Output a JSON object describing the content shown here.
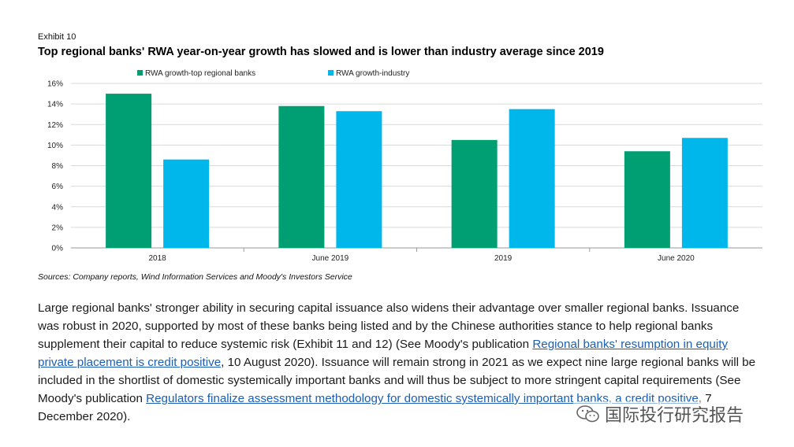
{
  "exhibit_label": "Exhibit 10",
  "title": "Top regional banks' RWA year-on-year growth has slowed and is lower than industry average since 2019",
  "sources": "Sources: Company reports, Wind Information Services and Moody's Investors Service",
  "chart_data": {
    "type": "bar",
    "categories": [
      "2018",
      "June 2019",
      "2019",
      "June 2020"
    ],
    "series": [
      {
        "name": "RWA growth-top regional banks",
        "color": "#009e73",
        "values": [
          0.15,
          0.138,
          0.105,
          0.094
        ]
      },
      {
        "name": "RWA growth-industry",
        "color": "#00b7eb",
        "values": [
          0.086,
          0.133,
          0.135,
          0.107
        ]
      }
    ],
    "y_ticks": [
      "0%",
      "2%",
      "4%",
      "6%",
      "8%",
      "10%",
      "12%",
      "14%",
      "16%"
    ],
    "ylim": [
      0,
      0.16
    ],
    "legend_position": "top",
    "grid": true
  },
  "paragraph": {
    "t1": "Large regional banks' stronger ability in securing capital issuance also widens their advantage over smaller regional banks. Issuance was robust in 2020, supported by most of these banks being listed and by the Chinese authorities stance to help regional banks supplement their capital to reduce systemic risk (Exhibit 11 and 12) (See Moody's publication ",
    "link1": "Regional banks' resumption in equity private placement is credit positive",
    "t2": ", 10 August 2020). Issuance will remain strong in 2021 as we expect nine large regional banks will be included in the shortlist of domestic systemically important banks and will thus be subject to more stringent capital requirements (See Moody's publication ",
    "link2": "Regulators finalize assessment methodology for domestic systemically important banks, a credit positive",
    "t3": ", 7 December 2020)."
  },
  "watermark": "国际投行研究报告"
}
